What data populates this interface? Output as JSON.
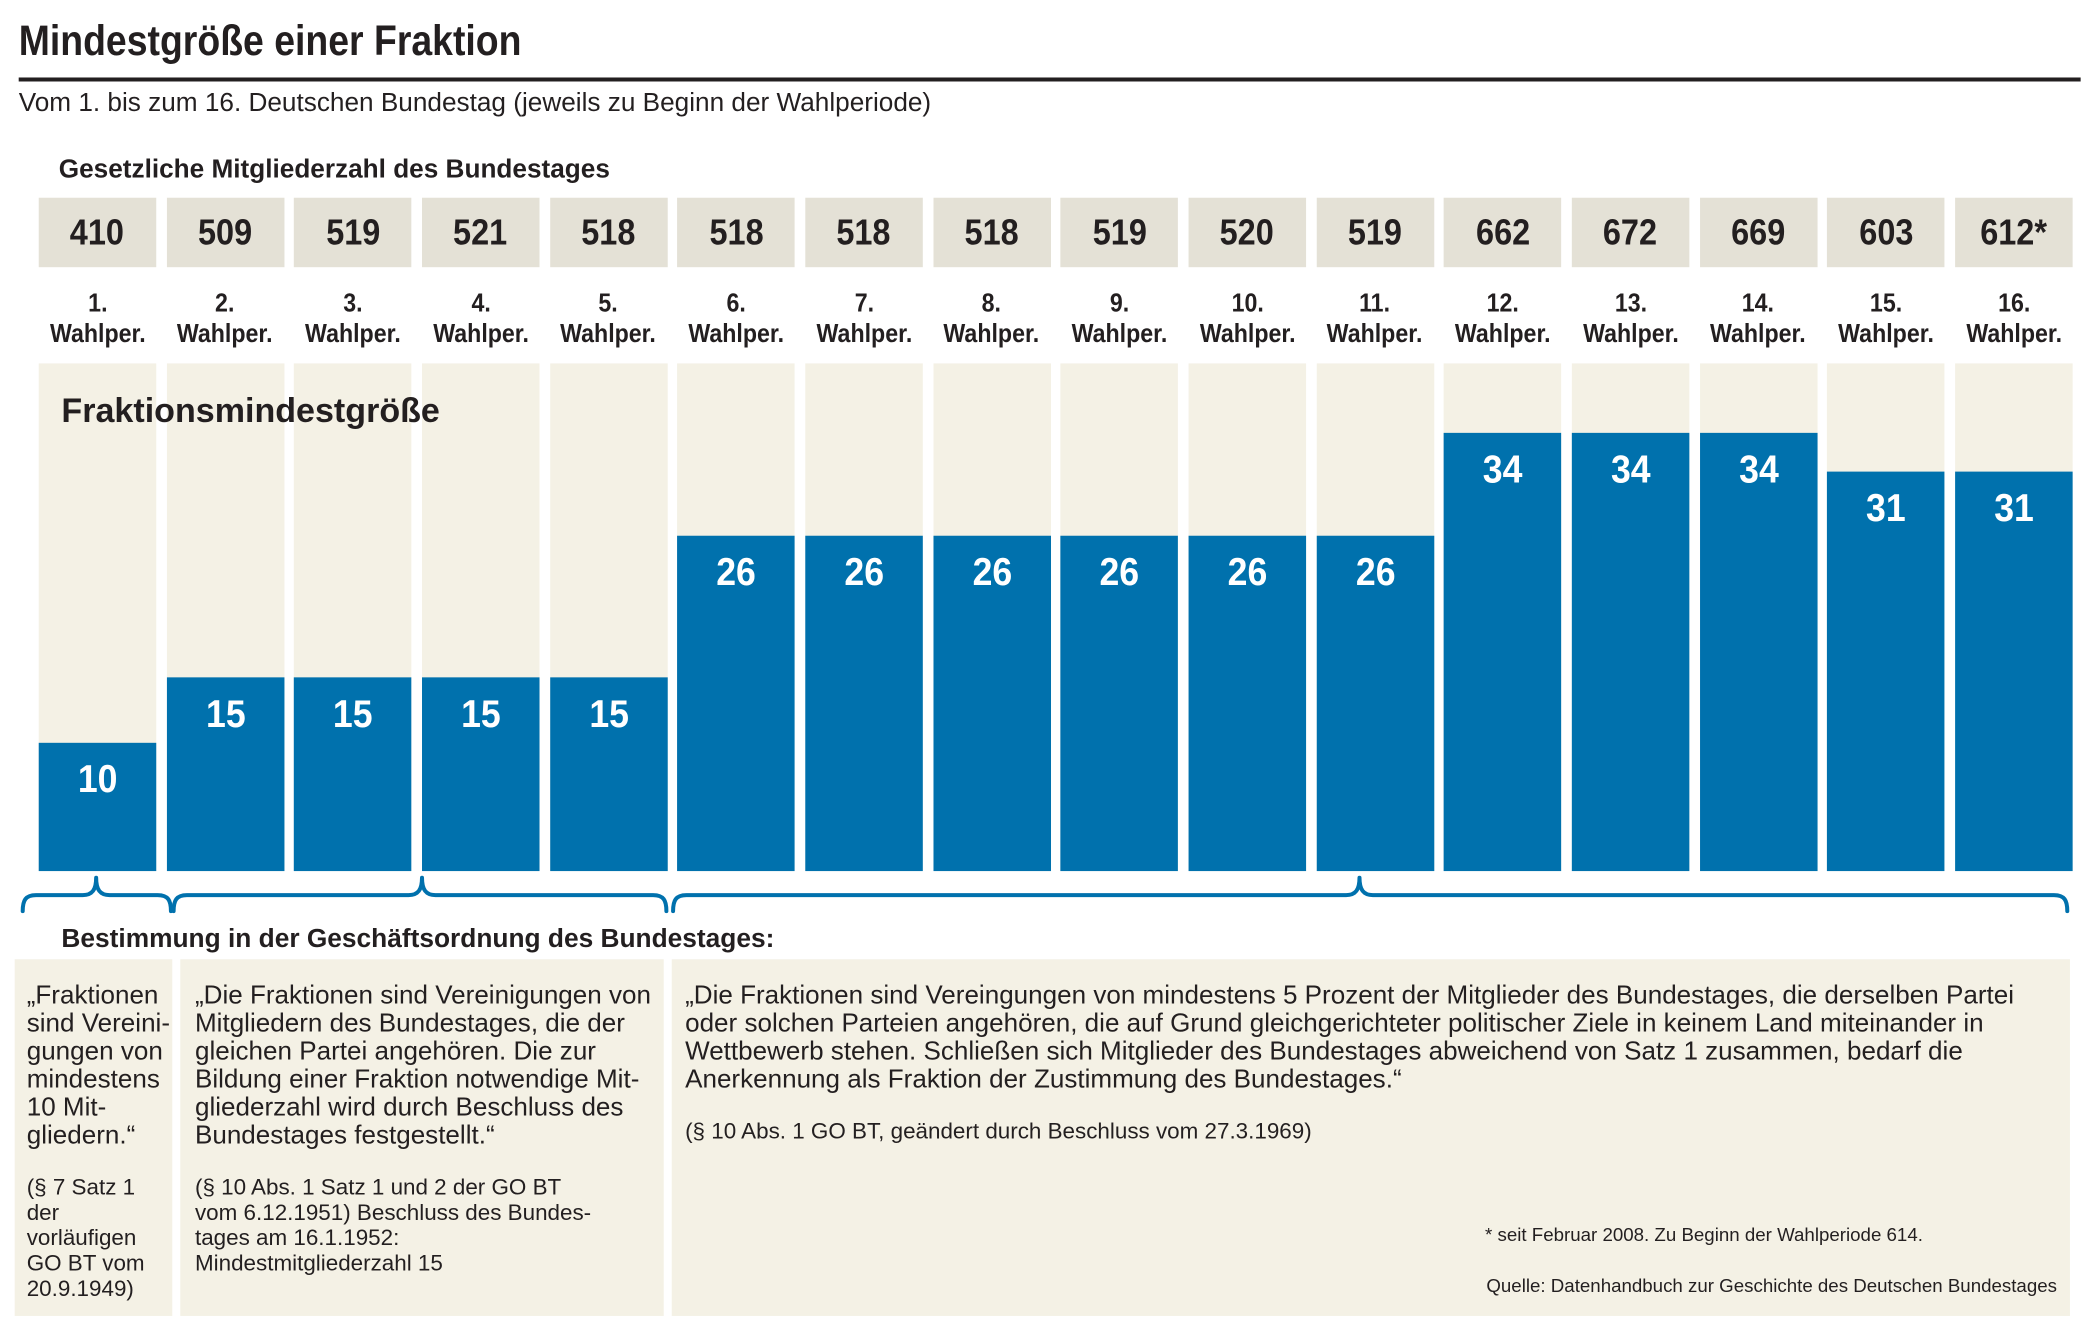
{
  "colors": {
    "text": "#231f20",
    "bar": "#0071ad",
    "bar_label": "#ffffff",
    "column_background": "#f4f1e5",
    "member_cell_background": "#e4e1d6",
    "rule_box_background": "#f4f1e5"
  },
  "chart_data": {
    "type": "bar",
    "title": "Mindestgröße einer Fraktion",
    "subtitle": "Vom 1. bis zum 16. Deutschen Bundestag (jeweils zu Beginn der Wahlperiode)",
    "categories": [
      "1. Wahlper.",
      "2. Wahlper.",
      "3. Wahlper.",
      "4. Wahlper.",
      "5. Wahlper.",
      "6. Wahlper.",
      "7. Wahlper.",
      "8. Wahlper.",
      "9. Wahlper.",
      "10. Wahlper.",
      "11. Wahlper.",
      "12. Wahlper.",
      "13. Wahlper.",
      "14. Wahlper.",
      "15. Wahlper.",
      "16. Wahlper."
    ],
    "series": [
      {
        "name": "Fraktionsmindestgröße",
        "values": [
          10,
          15,
          15,
          15,
          15,
          26,
          26,
          26,
          26,
          26,
          26,
          34,
          34,
          34,
          31,
          31
        ]
      }
    ],
    "header_row": {
      "label": "Gesetzliche Mitgliederzahl des Bundestages",
      "values": [
        "410",
        "509",
        "519",
        "521",
        "518",
        "518",
        "518",
        "518",
        "519",
        "520",
        "519",
        "662",
        "672",
        "669",
        "603",
        "612*"
      ]
    },
    "ylim": [
      0,
      39.4
    ],
    "grid": false
  },
  "rules_heading": "Bestimmung in der Geschäftsordnung des Bundestages:",
  "rules": [
    {
      "text_lines": [
        "„Fraktionen",
        "sind Vereini-",
        "gungen von",
        "mindestens",
        "10 Mit-",
        "gliedern.“"
      ],
      "source_lines": [
        "(§ 7 Satz 1",
        "der",
        "vorläufigen",
        "GO BT vom",
        "20.9.1949)"
      ]
    },
    {
      "text_lines": [
        "„Die Fraktionen sind Vereinigungen von",
        "Mitgliedern des Bundestages, die der",
        "gleichen Partei angehören. Die zur",
        "Bildung einer Fraktion notwendige Mit-",
        "gliederzahl wird durch Beschluss des",
        "Bundestages festgestellt.“"
      ],
      "source_lines": [
        "(§ 10 Abs. 1 Satz 1 und 2 der GO BT",
        "vom 6.12.1951) Beschluss des Bundes-",
        "tages am 16.1.1952:",
        "Mindestmitgliederzahl 15"
      ]
    },
    {
      "text_lines": [
        "„Die Fraktionen sind Vereingungen von mindestens 5 Prozent der Mitglieder des Bundestages, die derselben Partei",
        "oder solchen Parteien angehören, die auf Grund gleichgerichteter politischer Ziele in keinem Land miteinander in",
        "Wettbewerb stehen. Schließen sich Mitglieder des Bundestages abweichend von Satz 1 zusammen, bedarf die",
        "Anerkennung als Fraktion der Zustimmung des Bundestages.“"
      ],
      "source_lines": [
        "(§ 10 Abs. 1 GO BT, geändert durch Beschluss vom 27.3.1969)"
      ]
    }
  ],
  "footnote": "* seit Februar 2008. Zu Beginn der Wahlperiode 614.",
  "source": "Quelle: Datenhandbuch zur Geschichte des Deutschen Bundestages"
}
